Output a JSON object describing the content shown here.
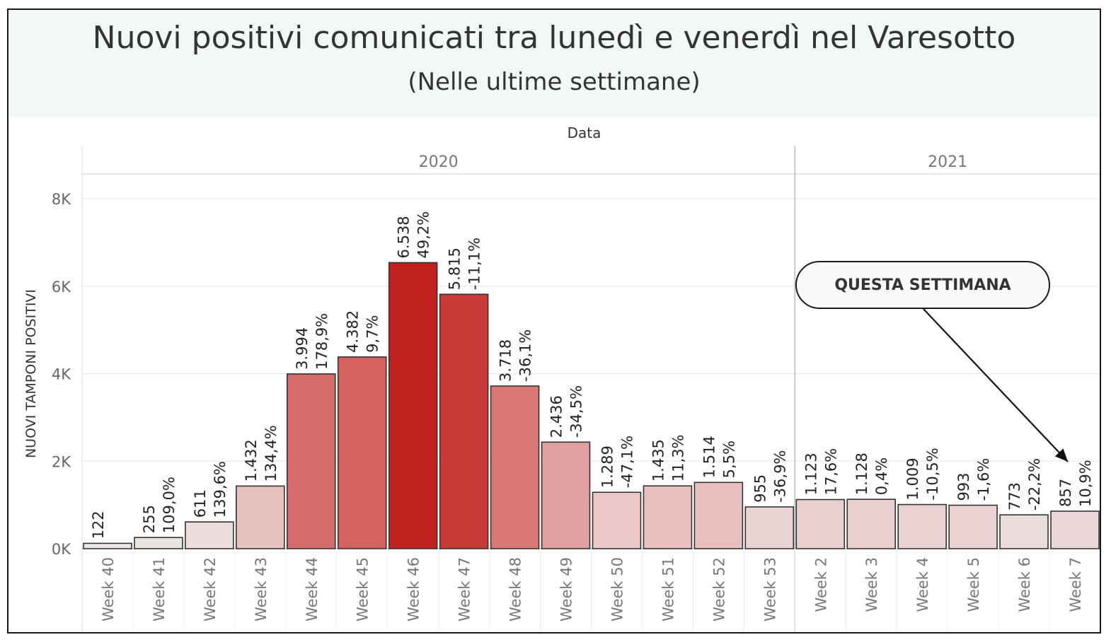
{
  "title": "Nuovi positivi comunicati tra lunedì e venerdì nel Varesotto",
  "subtitle": "(Nelle ultime settimane)",
  "annotation": "QUESTA SETTIMANA",
  "colors": {
    "title_band": "#f2f8f8",
    "bar_outline": "#333333",
    "gridline": "#e6e6e6",
    "color_scale": [
      "#eedddd",
      "#c0201e"
    ]
  },
  "chart_data": {
    "type": "bar",
    "header": "Data",
    "ylabel": "NUOVI TAMPONI POSITIVI",
    "ylim": [
      0,
      8000
    ],
    "yticks": [
      {
        "value": 0,
        "label": "0K"
      },
      {
        "value": 2000,
        "label": "2K"
      },
      {
        "value": 4000,
        "label": "4K"
      },
      {
        "value": 6000,
        "label": "6K"
      },
      {
        "value": 8000,
        "label": "8K"
      }
    ],
    "grid": true,
    "years": [
      {
        "label": "2020",
        "count": 14
      },
      {
        "label": "2021",
        "count": 6
      }
    ],
    "categories": [
      "Week 40",
      "Week 41",
      "Week 42",
      "Week 43",
      "Week 44",
      "Week 45",
      "Week 46",
      "Week 47",
      "Week 48",
      "Week 49",
      "Week 50",
      "Week 51",
      "Week 52",
      "Week 53",
      "Week 2",
      "Week 3",
      "Week 4",
      "Week 5",
      "Week 6",
      "Week 7"
    ],
    "values": [
      122,
      255,
      611,
      1432,
      3994,
      4382,
      6538,
      5815,
      3718,
      2436,
      1289,
      1435,
      1514,
      955,
      1123,
      1128,
      1009,
      993,
      773,
      857
    ],
    "value_labels": [
      "122",
      "255",
      "611",
      "1.432",
      "3.994",
      "4.382",
      "6.538",
      "5.815",
      "3.718",
      "2.436",
      "1.289",
      "1.435",
      "1.514",
      "955",
      "1.123",
      "1.128",
      "1.009",
      "993",
      "773",
      "857"
    ],
    "pct_change_labels": [
      "",
      "109,0%",
      "139,6%",
      "134,4%",
      "178,9%",
      "9,7%",
      "49,2%",
      "-11,1%",
      "-36,1%",
      "-34,5%",
      "-47,1%",
      "11,3%",
      "5,5%",
      "-36,9%",
      "17,6%",
      "0,4%",
      "-10,5%",
      "-1,6%",
      "-22,2%",
      "10,9%"
    ],
    "bar_colors": [
      "#ece6e6",
      "#ece3e3",
      "#ecdcdc",
      "#e7c0c0",
      "#d56b6b",
      "#d66260",
      "#c0201e",
      "#c83a37",
      "#d97875",
      "#e0a0a0",
      "#ebc7c7",
      "#e9c1c1",
      "#e8bfbf",
      "#ebd4d4",
      "#ebcfcf",
      "#ebcece",
      "#ebd3d3",
      "#ebd3d3",
      "#ebdcdc",
      "#ebd7d7"
    ],
    "annotated_category": "Week 7"
  }
}
